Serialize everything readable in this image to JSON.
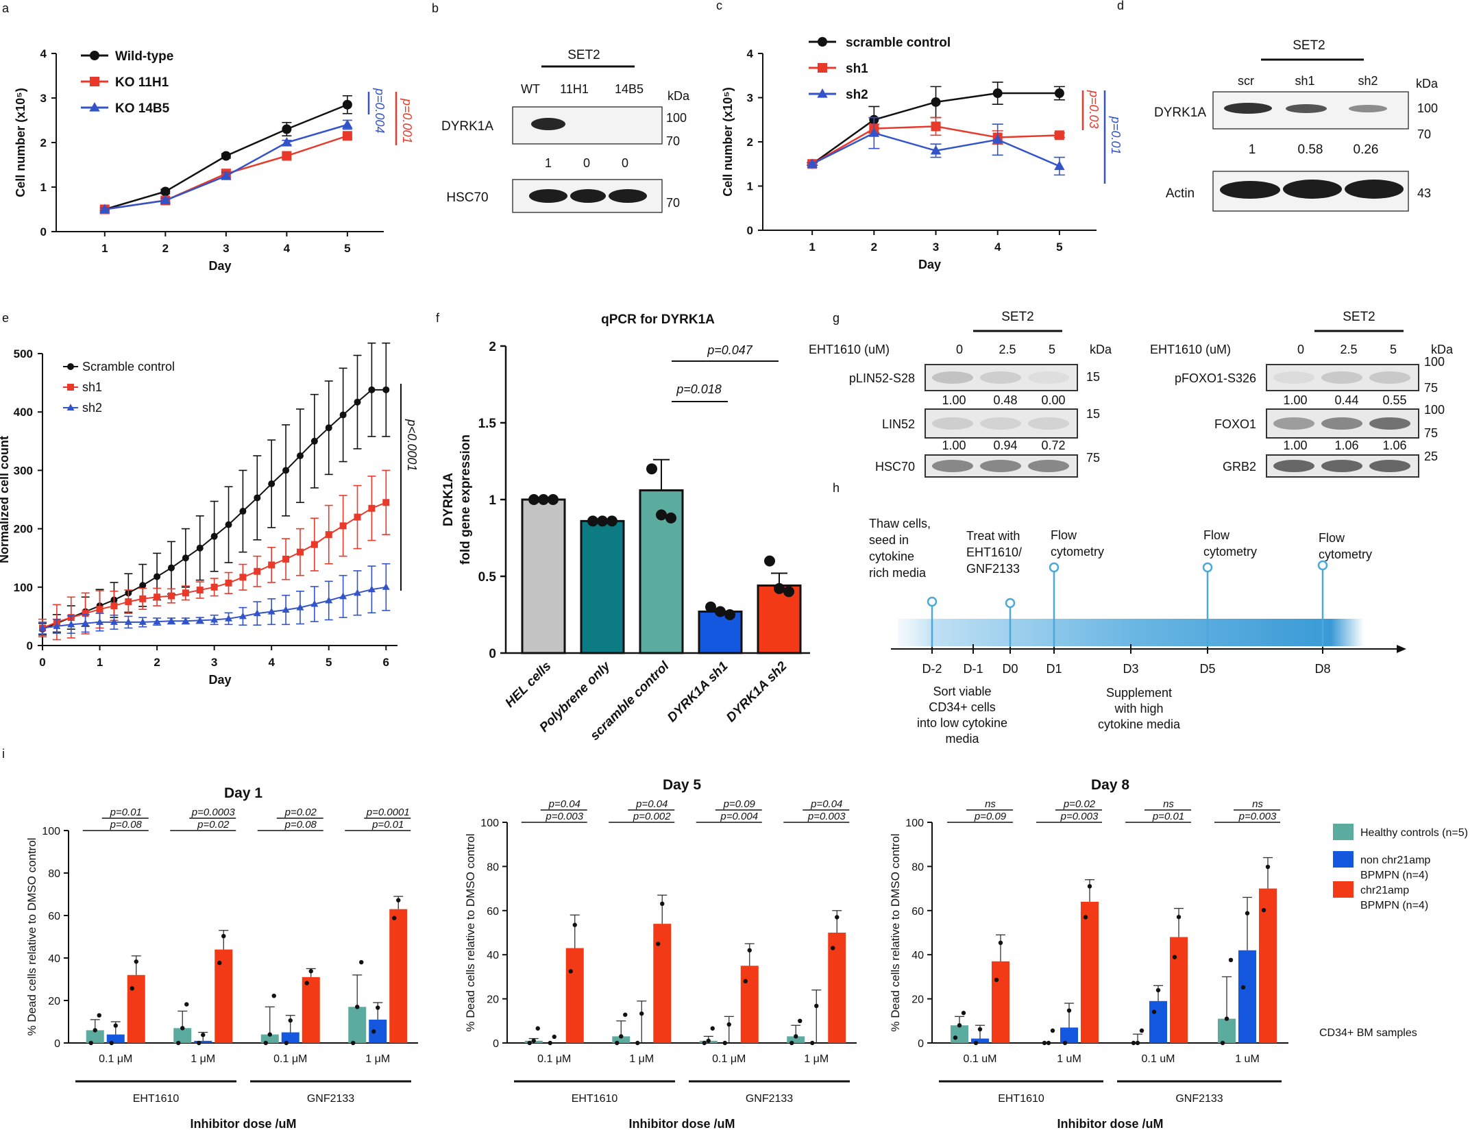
{
  "colors": {
    "black": "#111111",
    "red": "#e8392b",
    "blue": "#3353c9",
    "grey_bar": "#c4c4c4",
    "teal_dark": "#0d7b83",
    "teal_light": "#5cab9f",
    "blue_bar": "#1558e0",
    "red_bar": "#f23a17",
    "timeline": "#4aa8dc"
  },
  "panel_letters": [
    "a",
    "b",
    "c",
    "d",
    "e",
    "f",
    "g",
    "h",
    "i"
  ],
  "chart_data": [
    {
      "panel": "a",
      "type": "line",
      "xlabel": "Day",
      "ylabel": "Cell number (x10⁵)",
      "x": [
        1,
        2,
        3,
        4,
        5
      ],
      "xlim": [
        0.2,
        5.6
      ],
      "ylim": [
        0,
        4
      ],
      "xticks": [
        "1",
        "2",
        "3",
        "4",
        "5"
      ],
      "yticks": [
        "0",
        "1",
        "2",
        "3",
        "4"
      ],
      "series": [
        {
          "name": "Wild-type",
          "marker": "circle",
          "color": "#111111",
          "values": [
            0.5,
            0.9,
            1.7,
            2.3,
            2.85
          ],
          "err": [
            0.03,
            0.05,
            0.05,
            0.15,
            0.2
          ]
        },
        {
          "name": "KO 11H1",
          "marker": "square",
          "color": "#e8392b",
          "values": [
            0.5,
            0.7,
            1.3,
            1.7,
            2.15
          ],
          "err": [
            0.03,
            0.05,
            0.1,
            0.05,
            0.03
          ]
        },
        {
          "name": "KO 14B5",
          "marker": "triangle",
          "color": "#3353c9",
          "values": [
            0.5,
            0.7,
            1.25,
            2.0,
            2.4
          ],
          "err": [
            0.03,
            0.05,
            0.08,
            0.05,
            0.1
          ]
        }
      ],
      "annotations": [
        "p=0.004",
        "p=0.001"
      ]
    },
    {
      "panel": "c",
      "type": "line",
      "xlabel": "Day",
      "ylabel": "Cell number (x10⁵)",
      "x": [
        1,
        2,
        3,
        4,
        5
      ],
      "xlim": [
        0.2,
        5.6
      ],
      "ylim": [
        0,
        4
      ],
      "xticks": [
        "1",
        "2",
        "3",
        "4",
        "5"
      ],
      "yticks": [
        "0",
        "1",
        "2",
        "3",
        "4"
      ],
      "series": [
        {
          "name": "scramble control",
          "marker": "circle",
          "color": "#111111",
          "values": [
            1.5,
            2.5,
            2.9,
            3.1,
            3.1
          ],
          "err": [
            0.03,
            0.3,
            0.35,
            0.25,
            0.15
          ]
        },
        {
          "name": "sh1",
          "marker": "square",
          "color": "#e8392b",
          "values": [
            1.5,
            2.3,
            2.35,
            2.1,
            2.15
          ],
          "err": [
            0.03,
            0.1,
            0.2,
            0.15,
            0.05
          ]
        },
        {
          "name": "sh2",
          "marker": "triangle",
          "color": "#3353c9",
          "values": [
            1.5,
            2.2,
            1.8,
            2.05,
            1.45
          ],
          "err": [
            0.03,
            0.35,
            0.15,
            0.35,
            0.2
          ]
        }
      ],
      "annotations": [
        "p=0.03",
        "p=0.01"
      ]
    },
    {
      "panel": "e",
      "type": "line",
      "xlabel": "Day",
      "ylabel": "Normalized cell count",
      "x": [
        0,
        0.25,
        0.5,
        0.75,
        1,
        1.25,
        1.5,
        1.75,
        2,
        2.25,
        2.5,
        2.75,
        3,
        3.25,
        3.5,
        3.75,
        4,
        4.25,
        4.5,
        4.75,
        5,
        5.25,
        5.5,
        5.75,
        6
      ],
      "xlim": [
        0,
        6.2
      ],
      "ylim": [
        0,
        500
      ],
      "xticks": [
        "0",
        "1",
        "2",
        "3",
        "4",
        "5",
        "6"
      ],
      "yticks": [
        "0",
        "100",
        "200",
        "300",
        "400",
        "500"
      ],
      "series": [
        {
          "name": "Scramble control",
          "marker": "circle",
          "color": "#111111",
          "values": [
            28,
            38,
            48,
            58,
            68,
            78,
            90,
            103,
            118,
            133,
            150,
            167,
            187,
            207,
            230,
            253,
            277,
            300,
            325,
            350,
            373,
            395,
            417,
            438,
            438
          ],
          "err": [
            10,
            15,
            20,
            25,
            28,
            30,
            33,
            36,
            40,
            45,
            50,
            55,
            60,
            65,
            70,
            72,
            75,
            78,
            80,
            80,
            80,
            80,
            80,
            80,
            80
          ]
        },
        {
          "name": "sh1",
          "marker": "square",
          "color": "#e8392b",
          "values": [
            30,
            40,
            48,
            55,
            62,
            68,
            75,
            80,
            83,
            85,
            90,
            95,
            100,
            107,
            117,
            127,
            138,
            148,
            160,
            173,
            190,
            205,
            220,
            235,
            245
          ],
          "err": [
            15,
            30,
            35,
            35,
            32,
            25,
            20,
            18,
            15,
            12,
            12,
            14,
            15,
            18,
            22,
            26,
            30,
            35,
            40,
            45,
            50,
            52,
            54,
            55,
            55
          ]
        },
        {
          "name": "sh2",
          "marker": "triangle",
          "color": "#3353c9",
          "values": [
            30,
            33,
            36,
            38,
            40,
            40,
            40,
            40,
            41,
            42,
            42,
            43,
            44,
            46,
            50,
            55,
            58,
            61,
            65,
            71,
            77,
            84,
            90,
            96,
            100
          ],
          "err": [
            10,
            12,
            15,
            15,
            15,
            12,
            10,
            8,
            6,
            5,
            5,
            5,
            8,
            10,
            15,
            20,
            22,
            25,
            28,
            30,
            33,
            36,
            38,
            40,
            40
          ]
        }
      ],
      "annotations": [
        "p<0.0001"
      ]
    },
    {
      "panel": "f",
      "type": "bar",
      "title": "qPCR for DYRK1A",
      "ylabel": "DYRK1A fold gene expression",
      "categories": [
        "HEL cells",
        "Polybrene only",
        "scramble control",
        "DYRK1A sh1",
        "DYRK1A sh2"
      ],
      "values": [
        1.0,
        0.86,
        1.06,
        0.27,
        0.44
      ],
      "err": [
        0.01,
        0.01,
        0.2,
        0.02,
        0.08
      ],
      "points": [
        [
          1.0,
          1.0,
          1.0
        ],
        [
          0.86,
          0.86,
          0.86
        ],
        [
          1.2,
          0.9,
          0.88
        ],
        [
          0.3,
          0.27,
          0.25
        ],
        [
          0.6,
          0.42,
          0.4
        ]
      ],
      "colors": [
        "#c4c4c4",
        "#0d7b83",
        "#5cab9f",
        "#1558e0",
        "#f23a17"
      ],
      "ylim": [
        0,
        2
      ],
      "yticks": [
        "0",
        "0.5",
        "1",
        "1.5",
        "2"
      ],
      "annotations": [
        "p=0.018",
        "p=0.047"
      ]
    },
    {
      "panel": "i1",
      "type": "bar",
      "title": "Day 1",
      "ylabel": "% Dead cells relative to DMSO control",
      "xlabel": "Inhibitor dose /uM",
      "groups": [
        "0.1 μM",
        "1 μM",
        "0.1 μM",
        "1 μM"
      ],
      "inhibitors": [
        "EHT1610",
        "GNF2133"
      ],
      "series": [
        {
          "name": "Healthy controls (n=5)",
          "color": "#5cab9f",
          "values": [
            6,
            7,
            4,
            17
          ],
          "err": [
            5,
            8,
            13,
            15
          ]
        },
        {
          "name": "non chr21amp BPMPN (n=4)",
          "color": "#1558e0",
          "values": [
            4,
            1,
            5,
            11
          ],
          "err": [
            6,
            4,
            8,
            8
          ]
        },
        {
          "name": "chr21amp BPMPN (n=4)",
          "color": "#f23a17",
          "values": [
            32,
            44,
            31,
            63
          ],
          "err": [
            9,
            9,
            4,
            6
          ]
        }
      ],
      "ylim": [
        0,
        100
      ],
      "yticks": [
        "0",
        "20",
        "40",
        "60",
        "80",
        "100"
      ],
      "pvalues": [
        [
          "p=0.01",
          "p=0.08"
        ],
        [
          "p=0.0003",
          "p=0.02"
        ],
        [
          "p=0.02",
          "p=0.08"
        ],
        [
          "p=0.0001",
          "p=0.01"
        ]
      ]
    },
    {
      "panel": "i2",
      "type": "bar",
      "title": "Day 5",
      "ylabel": "% Dead cells relative to DMSO control",
      "xlabel": "Inhibitor dose /uM",
      "groups": [
        "0.1 μM",
        "1 μM",
        "0.1 μM",
        "1 μM"
      ],
      "inhibitors": [
        "EHT1610",
        "GNF2133"
      ],
      "series": [
        {
          "name": "Healthy controls (n=5)",
          "color": "#5cab9f",
          "values": [
            1,
            3,
            1,
            3
          ],
          "err": [
            1,
            7,
            2,
            5
          ]
        },
        {
          "name": "non chr21amp BPMPN (n=4)",
          "color": "#1558e0",
          "values": [
            0,
            0,
            0,
            0
          ],
          "err": [
            0,
            19,
            12,
            24
          ]
        },
        {
          "name": "chr21amp BPMPN (n=4)",
          "color": "#f23a17",
          "values": [
            43,
            54,
            35,
            50
          ],
          "err": [
            15,
            13,
            10,
            10
          ]
        }
      ],
      "ylim": [
        0,
        100
      ],
      "yticks": [
        "0",
        "20",
        "40",
        "60",
        "80",
        "100"
      ],
      "pvalues": [
        [
          "p=0.04",
          "p=0.003"
        ],
        [
          "p=0.04",
          "p=0.002"
        ],
        [
          "p=0.09",
          "p=0.004"
        ],
        [
          "p=0.04",
          "p=0.003"
        ]
      ]
    },
    {
      "panel": "i3",
      "type": "bar",
      "title": "Day 8",
      "ylabel": "% Dead cells relative to DMSO control",
      "xlabel": "Inhibitor dose /uM",
      "groups": [
        "0.1 uM",
        "1 uM",
        "0.1 uM",
        "1 uM"
      ],
      "inhibitors": [
        "EHT1610",
        "GNF2133"
      ],
      "series": [
        {
          "name": "Healthy controls (n=5)",
          "color": "#5cab9f",
          "values": [
            8,
            0,
            0,
            11
          ],
          "err": [
            4,
            0,
            4,
            19
          ]
        },
        {
          "name": "non chr21amp BPMPN (n=4)",
          "color": "#1558e0",
          "values": [
            2,
            7,
            19,
            42
          ],
          "err": [
            6,
            11,
            7,
            24
          ]
        },
        {
          "name": "chr21amp BPMPN (n=4)",
          "color": "#f23a17",
          "values": [
            37,
            64,
            48,
            70
          ],
          "err": [
            12,
            10,
            13,
            14
          ]
        }
      ],
      "ylim": [
        0,
        100
      ],
      "yticks": [
        "0",
        "20",
        "40",
        "60",
        "80",
        "100"
      ],
      "pvalues": [
        [
          "ns",
          "p=0.09"
        ],
        [
          "p=0.02",
          "p=0.003"
        ],
        [
          "ns",
          "p=0.01"
        ],
        [
          "ns",
          "p=0.003"
        ]
      ],
      "note": "CD34+ BM samples"
    }
  ],
  "blot_b": {
    "header": "SET2",
    "lanes": [
      "WT",
      "11H1",
      "14B5"
    ],
    "unit": "kDa",
    "proteins": [
      "DYRK1A",
      "HSC70"
    ],
    "quant": [
      "1",
      "0",
      "0"
    ],
    "markers": [
      "100",
      "70",
      "70"
    ]
  },
  "blot_d": {
    "header": "SET2",
    "lanes": [
      "scr",
      "sh1",
      "sh2"
    ],
    "unit": "kDa",
    "proteins": [
      "DYRK1A",
      "Actin"
    ],
    "quant": [
      "1",
      "0.58",
      "0.26"
    ],
    "markers": [
      "100",
      "70",
      "43"
    ]
  },
  "blot_g1": {
    "header": "SET2",
    "treatment": "EHT1610 (uM)",
    "lanes": [
      "0",
      "2.5",
      "5"
    ],
    "unit": "kDa",
    "proteins": [
      "pLIN52-S28",
      "LIN52",
      "HSC70"
    ],
    "quant1": [
      "1.00",
      "0.48",
      "0.00"
    ],
    "quant2": [
      "1.00",
      "0.94",
      "0.72"
    ],
    "markers": [
      "15",
      "15",
      "75"
    ]
  },
  "blot_g2": {
    "header": "SET2",
    "treatment": "EHT1610 (uM)",
    "lanes": [
      "0",
      "2.5",
      "5"
    ],
    "unit": "kDa",
    "proteins": [
      "pFOXO1-S326",
      "FOXO1",
      "GRB2"
    ],
    "quant1": [
      "1.00",
      "0.44",
      "0.55"
    ],
    "quant2": [
      "1.00",
      "1.06",
      "1.06"
    ],
    "markers": [
      "100",
      "75",
      "100",
      "75",
      "25"
    ]
  },
  "timeline_h": {
    "days": [
      "D-2",
      "D-1",
      "D0",
      "D1",
      "D3",
      "D5",
      "D8"
    ],
    "above": [
      "Thaw cells,",
      "seed in",
      "cytokine",
      "rich media"
    ],
    "treat": [
      "Treat with",
      "EHT1610/",
      "GNF2133"
    ],
    "flow": [
      "Flow",
      "cytometry"
    ],
    "below1": [
      "Sort viable",
      "CD34+ cells",
      "into low cytokine",
      "media"
    ],
    "below2": [
      "Supplement",
      "with high",
      "cytokine media"
    ]
  }
}
